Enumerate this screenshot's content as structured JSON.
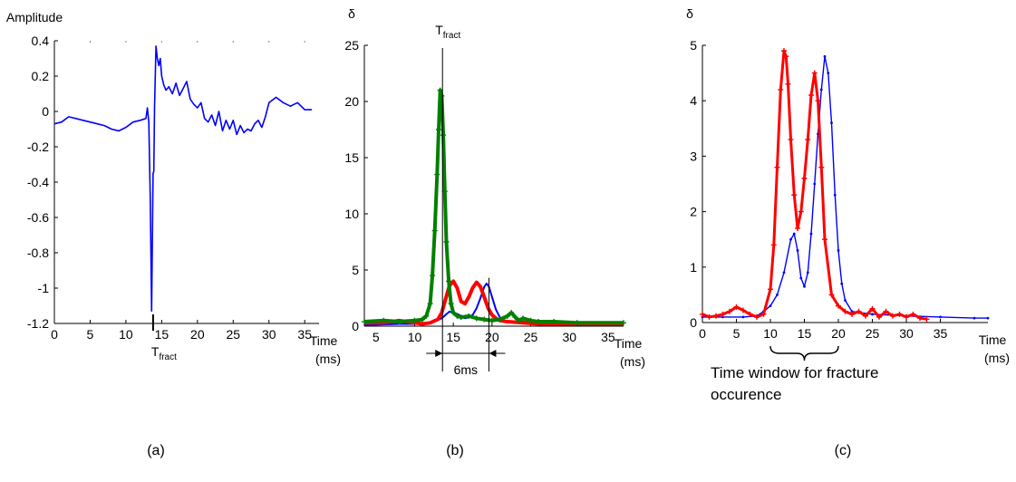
{
  "chart_data": [
    {
      "type": "line",
      "panel_label": "(a)",
      "ylabel": "Amplitude",
      "xlabel": [
        "Time",
        "(ms)"
      ],
      "marker_label": {
        "main": "T",
        "sub": "fract"
      },
      "marker_x": 13.8,
      "xlim": [
        0,
        37
      ],
      "ylim": [
        -1.2,
        0.4
      ],
      "xticks": [
        0,
        5,
        10,
        15,
        20,
        25,
        30,
        35
      ],
      "xtick_labels": [
        "0",
        "5",
        "10",
        "15",
        "20",
        "25",
        "30",
        "35"
      ],
      "yticks": [
        0.4,
        0.2,
        0,
        -0.2,
        -0.4,
        -0.6,
        -0.8,
        -1,
        -1.2
      ],
      "ytick_labels": [
        "0.4",
        "0.2",
        "0",
        "-0.2",
        "-0.4",
        "-0.6",
        "-0.8",
        "-1",
        "-1.2"
      ],
      "series": [
        {
          "color": "#0000ff",
          "x": [
            0,
            1,
            2,
            3,
            4,
            5,
            6,
            7,
            8,
            9,
            10,
            11,
            12,
            12.8,
            13.0,
            13.2,
            13.4,
            13.6,
            13.8,
            13.9,
            14.0,
            14.2,
            14.4,
            14.6,
            14.8,
            15.0,
            15.3,
            15.6,
            16,
            16.5,
            17,
            17.5,
            18,
            18.5,
            19,
            19.5,
            20,
            20.5,
            21,
            21.5,
            22,
            22.5,
            23,
            23.5,
            24,
            24.5,
            25,
            25.5,
            26,
            26.5,
            27,
            27.5,
            28,
            28.5,
            29,
            29.5,
            30,
            31,
            32,
            33,
            34,
            35,
            36
          ],
          "y": [
            -0.07,
            -0.06,
            -0.03,
            -0.04,
            -0.05,
            -0.06,
            -0.07,
            -0.08,
            -0.1,
            -0.11,
            -0.09,
            -0.06,
            -0.05,
            -0.04,
            0.02,
            -0.06,
            -0.5,
            -1.13,
            -0.35,
            -0.34,
            0.02,
            0.37,
            0.3,
            0.26,
            0.3,
            0.2,
            0.15,
            0.12,
            0.14,
            0.1,
            0.16,
            0.09,
            0.13,
            0.17,
            0.07,
            0.04,
            0.02,
            0.05,
            -0.04,
            -0.06,
            -0.02,
            -0.08,
            0.0,
            -0.11,
            -0.05,
            -0.1,
            -0.05,
            -0.13,
            -0.08,
            -0.12,
            -0.1,
            -0.11,
            -0.07,
            -0.05,
            -0.09,
            -0.03,
            0.05,
            0.08,
            0.05,
            0.03,
            0.05,
            0.01,
            0.01
          ]
        }
      ]
    },
    {
      "type": "line",
      "panel_label": "(b)",
      "ylabel": "δ",
      "xlabel": [
        "Time",
        "(ms)"
      ],
      "marker_label": {
        "main": "T",
        "sub": "fract"
      },
      "marker_x": 13.6,
      "window_end_x": 19.6,
      "span_label": "6ms",
      "xlim": [
        3.5,
        37
      ],
      "ylim": [
        0,
        25
      ],
      "xticks": [
        5,
        10,
        15,
        20,
        25,
        30,
        35
      ],
      "xtick_labels": [
        "5",
        "10",
        "15",
        "20",
        "25",
        "30",
        "35"
      ],
      "yticks": [
        25,
        20,
        15,
        10,
        5,
        0
      ],
      "ytick_labels": [
        "25",
        "20",
        "15",
        "10",
        "5",
        "0"
      ],
      "series": [
        {
          "color": "#0000ff",
          "width": 2,
          "x": [
            3.5,
            8,
            11,
            12.5,
            13.5,
            14.5,
            15.5,
            16,
            16.5,
            17,
            17.5,
            18,
            18.5,
            19,
            19.3,
            19.6,
            20,
            20.5,
            21,
            21.5,
            22.5,
            24,
            26,
            30,
            37
          ],
          "y": [
            0.1,
            0.2,
            0.2,
            0.4,
            0.7,
            1.3,
            1.1,
            0.9,
            0.7,
            0.8,
            1.0,
            1.6,
            2.5,
            3.5,
            3.8,
            3.5,
            2.6,
            1.5,
            0.8,
            0.5,
            0.4,
            0.4,
            0.3,
            0.2,
            0.1
          ]
        },
        {
          "color": "#ff0000",
          "width": 4,
          "x": [
            3.5,
            6,
            8,
            10,
            11,
            12,
            13,
            13.5,
            14,
            14.5,
            15,
            15.5,
            16,
            16.5,
            17,
            17.5,
            18,
            18.5,
            19,
            19.5,
            20,
            20.5,
            21,
            22,
            24,
            26,
            30,
            37
          ],
          "y": [
            0.3,
            0.3,
            0.5,
            0.3,
            0.2,
            0.3,
            0.6,
            1.2,
            2.4,
            3.6,
            4.0,
            3.4,
            2.2,
            2.0,
            2.6,
            3.4,
            3.9,
            3.5,
            2.6,
            1.6,
            1.0,
            0.7,
            0.5,
            0.4,
            0.3,
            0.2,
            0.2,
            0.2
          ]
        },
        {
          "color": "#008000",
          "width": 4,
          "marker": "plus",
          "x": [
            3.5,
            6,
            8,
            10,
            11,
            11.5,
            12,
            12.3,
            12.6,
            12.9,
            13.1,
            13.3,
            13.5,
            13.7,
            13.9,
            14.1,
            14.4,
            14.7,
            15,
            15.5,
            16,
            17,
            18,
            19,
            20,
            21,
            22,
            22.5,
            23,
            23.5,
            24,
            25,
            26,
            28,
            31,
            37
          ],
          "y": [
            0.4,
            0.5,
            0.4,
            0.5,
            0.6,
            0.9,
            2.0,
            4.5,
            8.5,
            13.5,
            17.5,
            21.0,
            20.5,
            17.0,
            12.0,
            7.5,
            4.0,
            2.0,
            1.2,
            0.9,
            0.8,
            0.9,
            0.7,
            0.6,
            0.5,
            0.6,
            0.9,
            1.2,
            0.8,
            0.5,
            0.7,
            0.5,
            0.4,
            0.4,
            0.3,
            0.3
          ]
        }
      ]
    },
    {
      "type": "line",
      "panel_label": "(c)",
      "ylabel": "δ",
      "xlabel": [
        "Time",
        "(ms)"
      ],
      "annotation": [
        "Time window for fracture",
        "occurence"
      ],
      "window": [
        10,
        20
      ],
      "xlim": [
        0,
        42
      ],
      "ylim": [
        0,
        5
      ],
      "xticks": [
        0,
        5,
        10,
        15,
        20,
        25,
        30,
        35
      ],
      "xtick_labels": [
        "0",
        "5",
        "10",
        "15",
        "20",
        "25",
        "30",
        "35"
      ],
      "yticks": [
        5,
        4,
        3,
        2,
        1,
        0
      ],
      "ytick_labels": [
        "5",
        "4",
        "3",
        "2",
        "1",
        "0"
      ],
      "series": [
        {
          "color": "#0000ff",
          "width": 1.4,
          "marker": "dot",
          "x": [
            0,
            3,
            6,
            8,
            9,
            10,
            11,
            12,
            13,
            13.5,
            14,
            14.5,
            15,
            15.5,
            16,
            16.5,
            17,
            17.5,
            18,
            18.5,
            19,
            19.5,
            20,
            20.5,
            21,
            22,
            25,
            30,
            35,
            40,
            42
          ],
          "y": [
            0.1,
            0.1,
            0.1,
            0.12,
            0.2,
            0.3,
            0.5,
            0.9,
            1.5,
            1.6,
            1.3,
            0.8,
            0.65,
            0.9,
            1.6,
            2.5,
            3.4,
            4.2,
            4.8,
            4.5,
            3.6,
            2.3,
            1.3,
            0.7,
            0.4,
            0.2,
            0.15,
            0.12,
            0.1,
            0.08,
            0.08
          ]
        },
        {
          "color": "#ff0000",
          "width": 3,
          "marker": "plus",
          "x": [
            0,
            1,
            2,
            3,
            4,
            5,
            6,
            7,
            8,
            9,
            10,
            10.5,
            11,
            11.5,
            12,
            12.3,
            12.6,
            13,
            13.5,
            14,
            14.5,
            15,
            15.5,
            16,
            16.5,
            17,
            17.5,
            18,
            19,
            20,
            21,
            22,
            23,
            24,
            25,
            26,
            27,
            28,
            29,
            30,
            31,
            32,
            33
          ],
          "y": [
            0.15,
            0.1,
            0.12,
            0.15,
            0.2,
            0.28,
            0.22,
            0.15,
            0.1,
            0.15,
            0.6,
            1.4,
            2.8,
            4.2,
            4.9,
            4.8,
            4.3,
            3.3,
            2.3,
            1.7,
            2.0,
            2.6,
            3.3,
            4.1,
            4.5,
            4.0,
            2.8,
            1.5,
            0.5,
            0.3,
            0.2,
            0.15,
            0.2,
            0.12,
            0.25,
            0.1,
            0.2,
            0.12,
            0.15,
            0.1,
            0.15,
            0.08,
            0.06
          ]
        }
      ]
    }
  ]
}
